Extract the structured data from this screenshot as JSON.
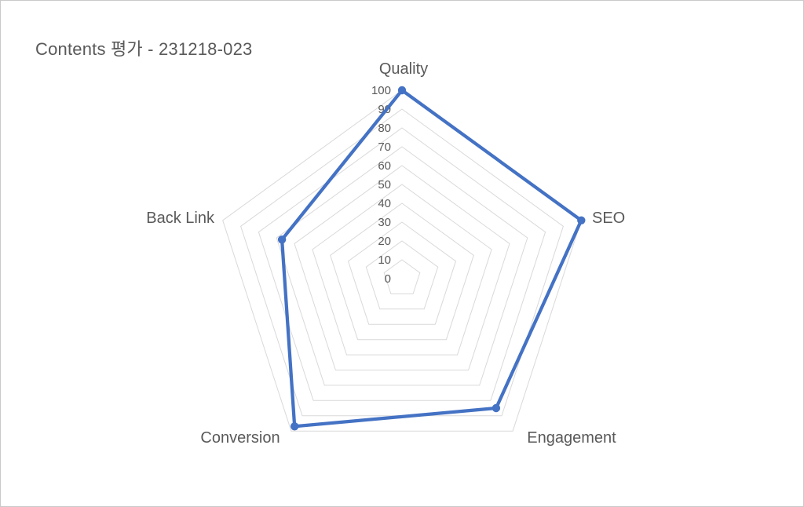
{
  "chart_data": {
    "type": "radar",
    "title": "Contents 평가 - 231218-023",
    "categories": [
      "Quality",
      "SEO",
      "Engagement",
      "Conversion",
      "Back Link"
    ],
    "values": [
      100,
      100,
      85,
      97,
      67
    ],
    "axis_range": [
      0,
      100
    ],
    "tick_interval": 10,
    "axis_ticks": [
      0,
      10,
      20,
      30,
      40,
      50,
      60,
      70,
      80,
      90,
      100
    ],
    "grid": true,
    "legend": "none",
    "series": [
      {
        "name": "Contents 평가",
        "values": [
          100,
          100,
          85,
          97,
          67
        ]
      }
    ],
    "colors": {
      "series_line": "#4472C4",
      "series_marker": "#4472C4",
      "gridline": "#D9D9D9",
      "text": "#595959",
      "background": "#FFFFFF",
      "frame_border": "#C9C9C9"
    }
  }
}
